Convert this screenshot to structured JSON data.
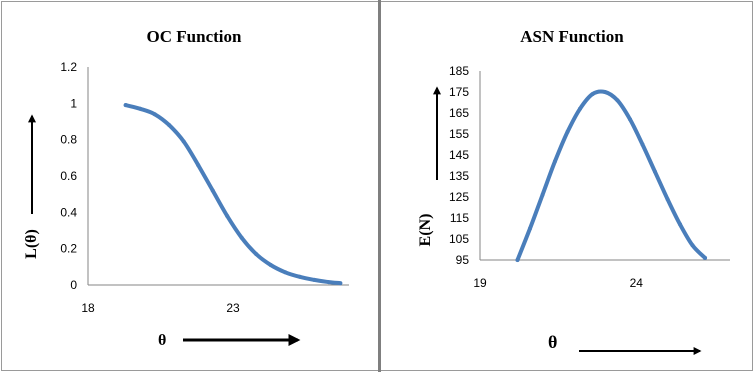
{
  "colors": {
    "line": "#4a7ebb",
    "axis": "#868686",
    "border": "#9a9a9a"
  },
  "chart_data": [
    {
      "type": "line",
      "title": "OC Function",
      "ylabel": "L(θ)",
      "xlabel": "θ",
      "xlim": [
        18,
        27
      ],
      "ylim": [
        0,
        1.2
      ],
      "xticks": [
        18,
        23
      ],
      "yticks": [
        0,
        0.2,
        0.4,
        0.6,
        0.8,
        1,
        1.2
      ],
      "x": [
        19.3,
        19.8,
        20.3,
        20.8,
        21.3,
        21.8,
        22.3,
        22.8,
        23.3,
        23.8,
        24.3,
        24.8,
        25.3,
        25.8,
        26.3,
        26.7
      ],
      "y": [
        0.99,
        0.97,
        0.94,
        0.88,
        0.79,
        0.66,
        0.52,
        0.38,
        0.26,
        0.17,
        0.11,
        0.07,
        0.045,
        0.028,
        0.016,
        0.01
      ],
      "grid": false
    },
    {
      "type": "line",
      "title": "ASN Function",
      "ylabel": "E(N)",
      "xlabel": "θ",
      "xlim": [
        19,
        27
      ],
      "ylim": [
        95,
        185
      ],
      "xticks": [
        19,
        24
      ],
      "yticks": [
        95,
        105,
        115,
        125,
        135,
        145,
        155,
        165,
        175,
        185
      ],
      "x": [
        20.2,
        20.6,
        21.0,
        21.4,
        21.8,
        22.2,
        22.6,
        23.0,
        23.4,
        23.8,
        24.2,
        24.6,
        25.0,
        25.4,
        25.8,
        26.2
      ],
      "y": [
        95,
        110,
        126,
        142,
        156,
        167,
        174,
        175,
        171,
        162,
        150,
        137,
        124,
        112,
        102,
        96
      ],
      "grid": false
    }
  ]
}
